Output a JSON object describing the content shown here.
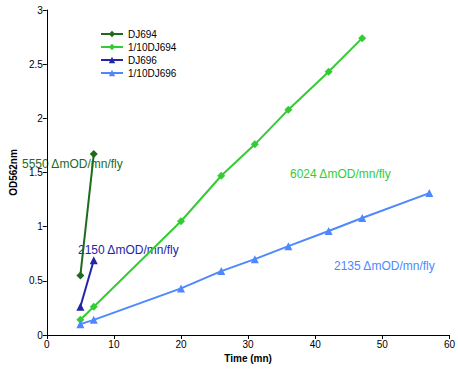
{
  "chart_data": {
    "type": "line",
    "x_label": "Time (mn)",
    "y_label": "OD562nm",
    "xlim": [
      0,
      60
    ],
    "xticks": [
      0,
      10,
      20,
      30,
      40,
      50,
      60
    ],
    "ylim": [
      0,
      3
    ],
    "yticks": [
      0,
      0.5,
      1,
      1.5,
      2,
      2.5,
      3
    ],
    "grid": false,
    "legend": "upper left",
    "series": [
      {
        "name": "DJ694",
        "color": "#1e6b1e",
        "marker": "diamond",
        "line_style": "solid",
        "x": [
          5,
          7
        ],
        "values": [
          0.55,
          1.67
        ]
      },
      {
        "name": "1/10DJ694",
        "color": "#33cc33",
        "marker": "diamond",
        "line_style": "solid",
        "x": [
          5,
          7,
          20,
          26,
          31,
          36,
          42,
          47
        ],
        "values": [
          0.14,
          0.26,
          1.05,
          1.47,
          1.76,
          2.08,
          2.43,
          2.74
        ]
      },
      {
        "name": "DJ696",
        "color": "#2424a8",
        "marker": "triangle",
        "line_style": "solid",
        "x": [
          5,
          7
        ],
        "values": [
          0.26,
          0.69
        ]
      },
      {
        "name": "1/10DJ696",
        "color": "#4d88ff",
        "marker": "triangle",
        "line_style": "solid",
        "x": [
          5,
          7,
          20,
          26,
          31,
          36,
          42,
          47,
          57
        ],
        "values": [
          0.1,
          0.14,
          0.43,
          0.59,
          0.7,
          0.82,
          0.96,
          1.08,
          1.31
        ]
      }
    ],
    "annotations": [
      {
        "text": "5550 ΔmOD/mn/fly",
        "color": "#1e6b1e"
      },
      {
        "text": "6024 ΔmOD/mn/fly",
        "color": "#33cc33"
      },
      {
        "text": "2150 ΔmOD/mn/fly",
        "color": "#2424a8"
      },
      {
        "text": "2135 ΔmOD/mn/fly",
        "color": "#4d88ff"
      }
    ]
  }
}
